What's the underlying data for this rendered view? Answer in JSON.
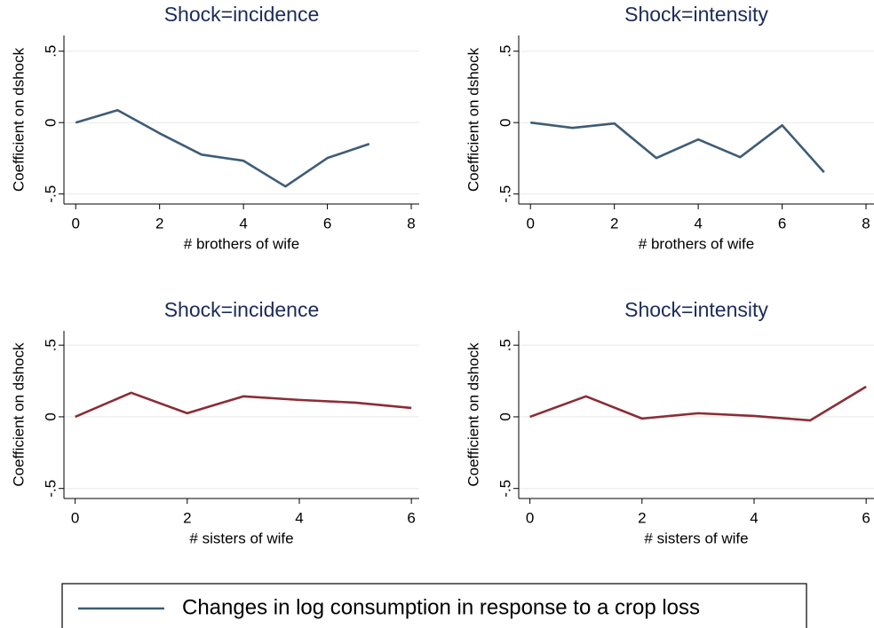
{
  "chart_data": [
    {
      "type": "line",
      "title": "Shock=incidence",
      "xlabel": "# brothers of wife",
      "ylabel": "Coefficient on dshock",
      "x": [
        0,
        1,
        2,
        3,
        4,
        5,
        6,
        7
      ],
      "series": [
        {
          "name": "Changes in log consumption in response to a crop loss",
          "color": "#3e5c76",
          "values": [
            0,
            0.087,
            -0.075,
            -0.224,
            -0.267,
            -0.447,
            -0.248,
            -0.149
          ]
        }
      ],
      "xlim": [
        -0.28,
        8.19
      ],
      "ylim": [
        -0.57,
        0.61
      ],
      "xticks": [
        0,
        2,
        4,
        6,
        8
      ],
      "yticks": [
        {
          "value": -0.5,
          "label": "-.5"
        },
        0,
        {
          "value": 0.5,
          "label": ".5"
        }
      ],
      "grid": true
    },
    {
      "type": "line",
      "title": "Shock=intensity",
      "xlabel": "# brothers of wife",
      "ylabel": "Coefficient on dshock",
      "x": [
        0,
        1,
        2,
        3,
        4,
        5,
        6,
        7
      ],
      "series": [
        {
          "color": "#3e5c76",
          "values": [
            0,
            -0.037,
            -0.006,
            -0.248,
            -0.118,
            -0.242,
            -0.019,
            -0.348
          ]
        }
      ],
      "xlim": [
        -0.28,
        8.19
      ],
      "ylim": [
        -0.57,
        0.61
      ],
      "xticks": [
        0,
        2,
        4,
        6,
        8
      ],
      "yticks": [
        {
          "value": -0.5,
          "label": "-.5"
        },
        0,
        {
          "value": 0.5,
          "label": ".5"
        }
      ],
      "grid": true
    },
    {
      "type": "line",
      "title": "Shock=incidence",
      "xlabel": "# sisters of wife",
      "ylabel": "Coefficient on dshock",
      "x": [
        0,
        1,
        2,
        3,
        4,
        5,
        6
      ],
      "series": [
        {
          "color": "#8b2d36",
          "values": [
            0,
            0.168,
            0.025,
            0.143,
            0.118,
            0.099,
            0.062
          ]
        }
      ],
      "xlim": [
        -0.2,
        6.14
      ],
      "ylim": [
        -0.57,
        0.6
      ],
      "xticks": [
        0,
        2,
        4,
        6
      ],
      "yticks": [
        {
          "value": -0.5,
          "label": "-.5"
        },
        0,
        {
          "value": 0.5,
          "label": ".5"
        }
      ],
      "grid": true
    },
    {
      "type": "line",
      "title": "Shock=intensity",
      "xlabel": "# sisters of wife",
      "ylabel": "Coefficient on dshock",
      "x": [
        0,
        1,
        2,
        3,
        4,
        5,
        6
      ],
      "series": [
        {
          "color": "#8b2d36",
          "values": [
            0,
            0.143,
            -0.012,
            0.025,
            0.006,
            -0.025,
            0.211
          ]
        }
      ],
      "xlim": [
        -0.2,
        6.14
      ],
      "ylim": [
        -0.57,
        0.6
      ],
      "xticks": [
        0,
        2,
        4,
        6
      ],
      "yticks": [
        {
          "value": -0.5,
          "label": "-.5"
        },
        0,
        {
          "value": 0.5,
          "label": ".5"
        }
      ],
      "grid": true
    }
  ]
}
